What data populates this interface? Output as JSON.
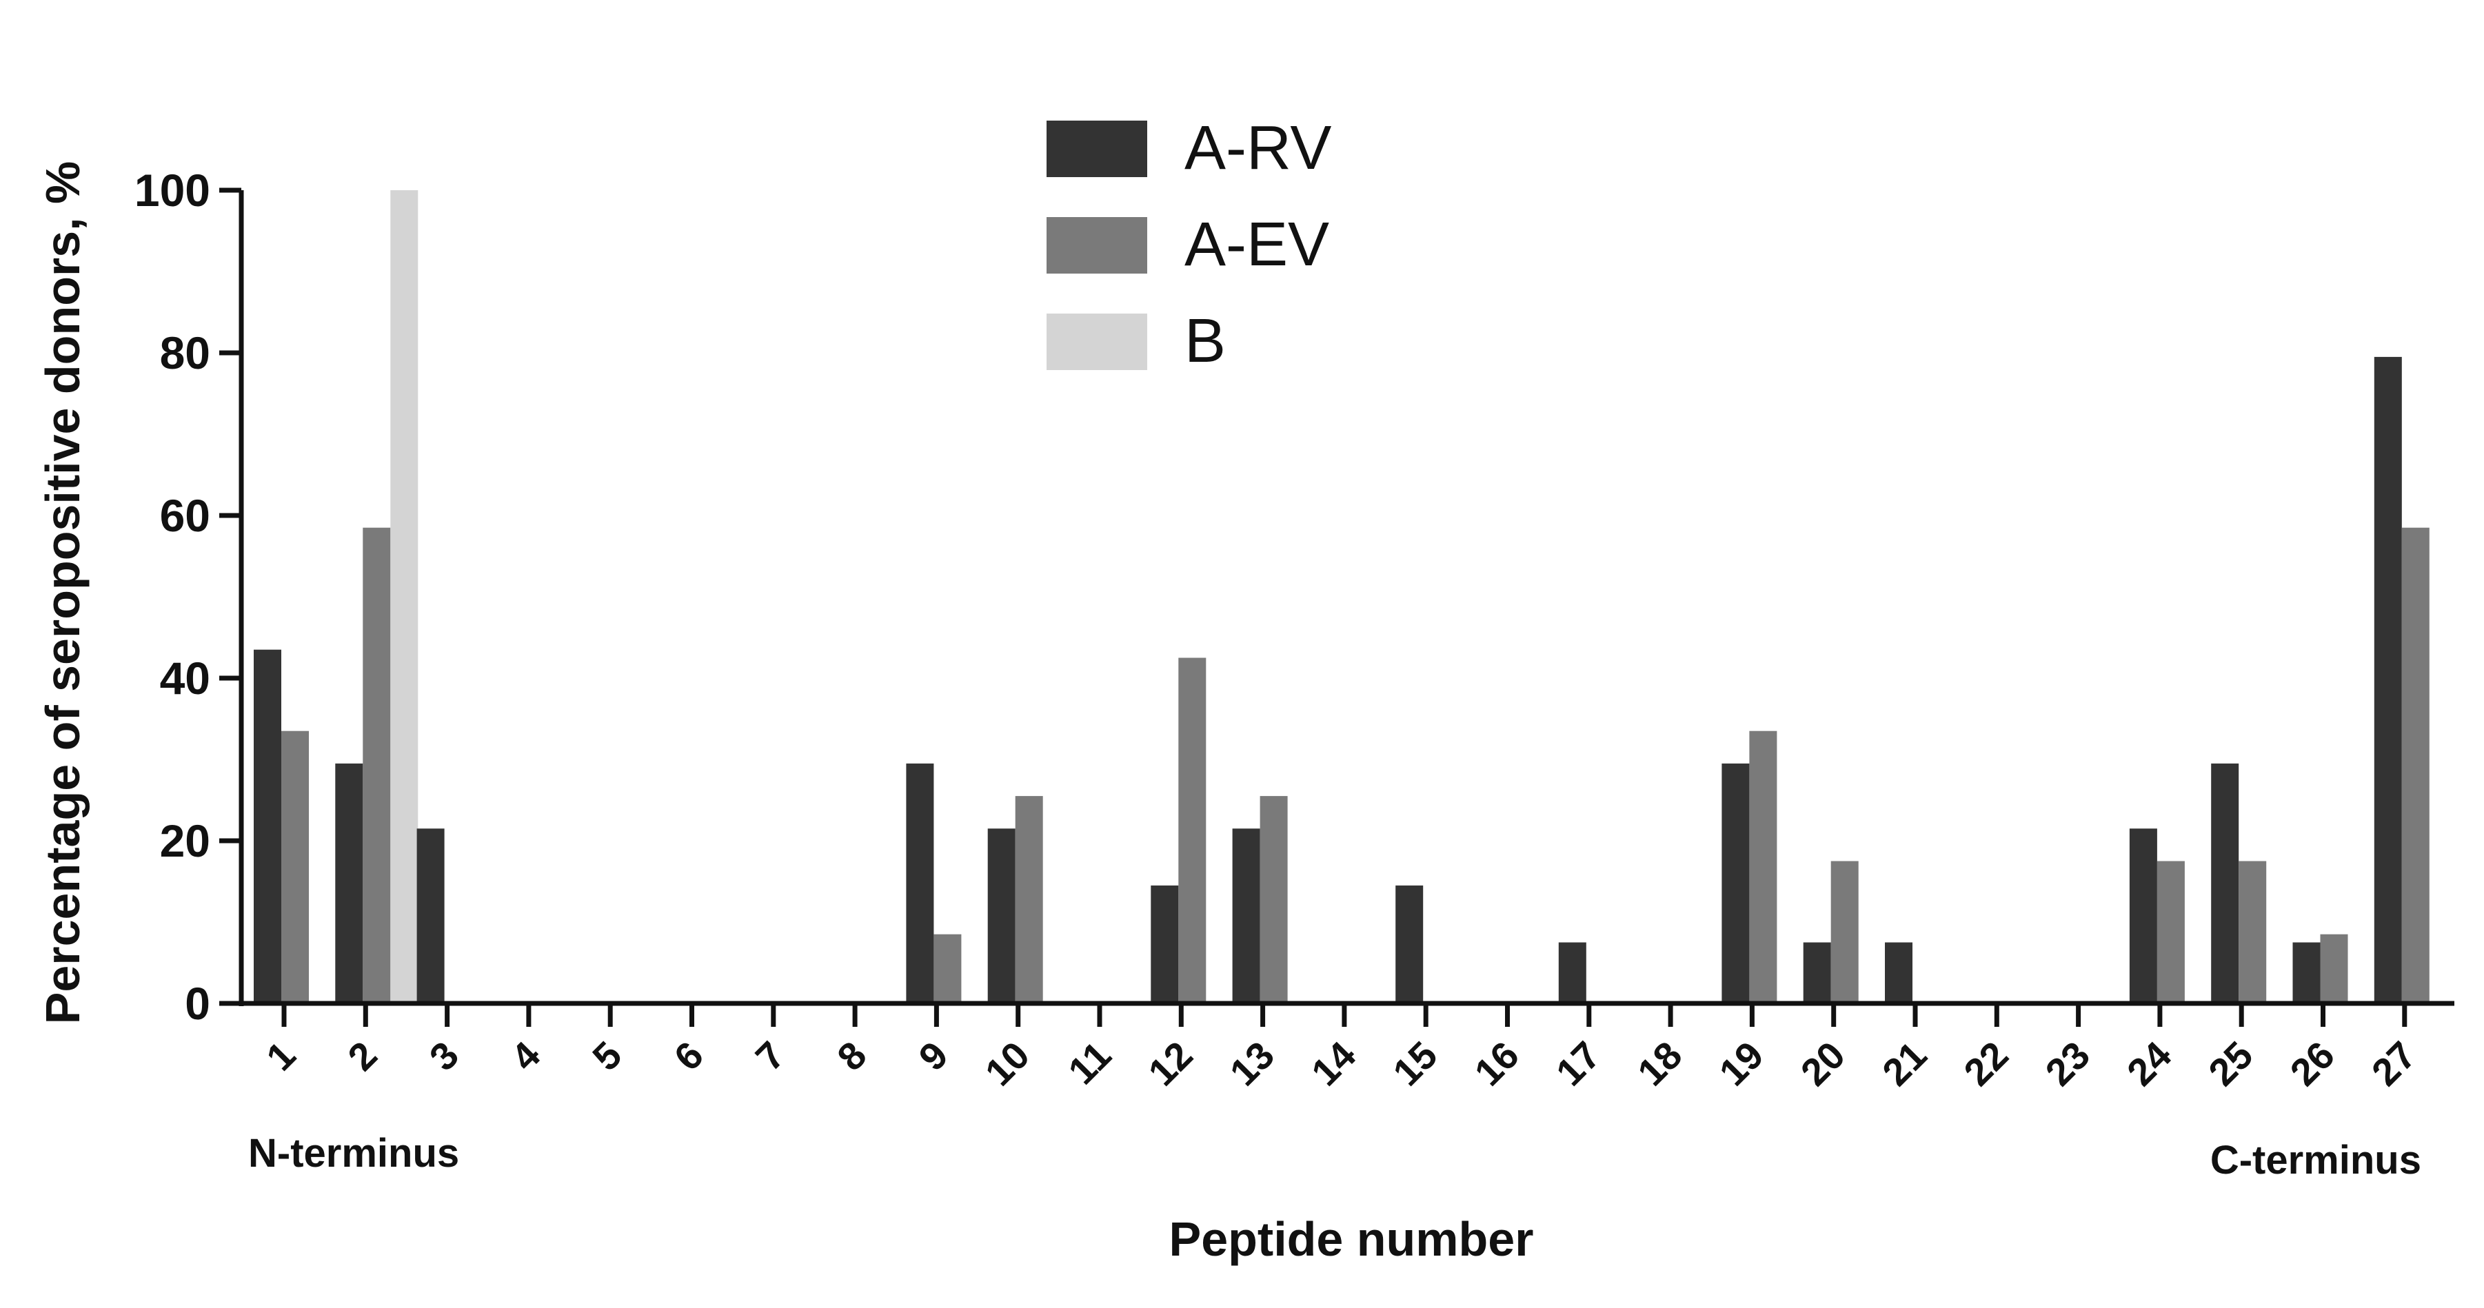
{
  "chart_data": {
    "type": "bar",
    "title": "",
    "xlabel": "Peptide number",
    "ylabel": "Percentage of seropositive donors, %",
    "ylim": [
      0,
      100
    ],
    "yticks": [
      "0",
      "20",
      "40",
      "60",
      "80",
      "100"
    ],
    "categories": [
      "1",
      "2",
      "3",
      "4",
      "5",
      "6",
      "7",
      "8",
      "9",
      "10",
      "11",
      "12",
      "13",
      "14",
      "15",
      "16",
      "17",
      "18",
      "19",
      "20",
      "21",
      "22",
      "23",
      "24",
      "25",
      "26",
      "27"
    ],
    "series": [
      {
        "name": "A-RV",
        "color": "#333333",
        "values": [
          43.5,
          29.5,
          21.5,
          0,
          0,
          0,
          0,
          0,
          29.5,
          21.5,
          0,
          14.5,
          21.5,
          0,
          14.5,
          0,
          7.5,
          0,
          29.5,
          7.5,
          7.5,
          0,
          0,
          21.5,
          29.5,
          7.5,
          79.5
        ]
      },
      {
        "name": "A-EV",
        "color": "#7a7a7a",
        "values": [
          33.5,
          58.5,
          0,
          0,
          0,
          0,
          0,
          0,
          8.5,
          25.5,
          0,
          42.5,
          25.5,
          0,
          0,
          0,
          0,
          0,
          33.5,
          17.5,
          0,
          0,
          0,
          17.5,
          17.5,
          8.5,
          58.5
        ]
      },
      {
        "name": "B",
        "color": "#d4d4d4",
        "values": [
          0,
          100,
          0,
          0,
          0,
          0,
          0,
          0,
          0,
          0,
          0,
          0,
          0,
          0,
          0,
          0,
          0,
          0,
          0,
          0,
          0,
          0,
          0,
          0,
          0,
          0,
          0
        ]
      }
    ],
    "annotations": {
      "left": "N-terminus",
      "right": "C-terminus"
    },
    "legend_placement": "top-center",
    "grid": false
  }
}
